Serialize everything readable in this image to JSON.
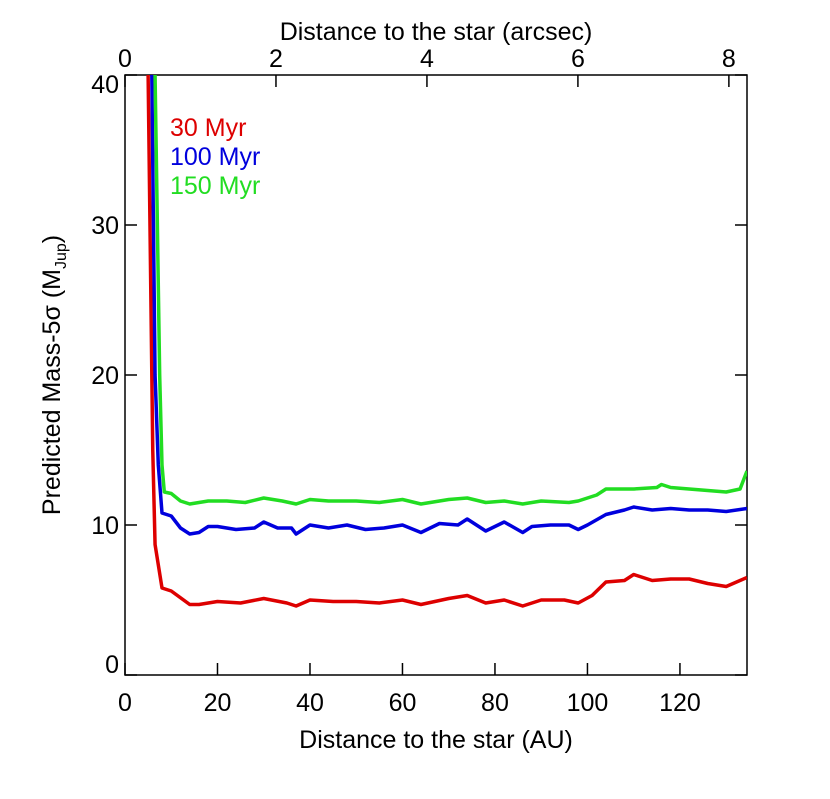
{
  "chart_data": {
    "type": "line",
    "xlabel": "Distance to the star (AU)",
    "x2label": "Distance to the star (arcsec)",
    "ylabel": "Predicted Mass-5σ (M",
    "ylabel_sub": "Jup",
    "ylabel_end": ")",
    "xlim": [
      0,
      134.5
    ],
    "xticks": [
      0,
      20,
      40,
      60,
      80,
      100,
      120
    ],
    "x2lim": [
      0,
      8.24
    ],
    "x2ticks": [
      0,
      2,
      4,
      6,
      8
    ],
    "ylim": [
      0,
      40
    ],
    "yticks": [
      0,
      10,
      20,
      30,
      40
    ],
    "legend": "top-left",
    "series": [
      {
        "name": "30 Myr",
        "color": "#dd0000",
        "x": [
          5,
          6,
          6.5,
          8,
          10,
          14,
          16,
          20,
          25,
          30,
          35,
          37,
          40,
          45,
          50,
          55,
          60,
          64,
          70,
          74,
          78,
          82,
          86,
          90,
          95,
          98,
          101,
          104,
          108,
          110,
          114,
          118,
          122,
          126,
          130,
          134.5
        ],
        "values": [
          40,
          15,
          8.7,
          5.8,
          5.6,
          4.7,
          4.7,
          4.9,
          4.8,
          5.1,
          4.8,
          4.6,
          5.0,
          4.9,
          4.9,
          4.8,
          5.0,
          4.7,
          5.1,
          5.3,
          4.8,
          5.0,
          4.6,
          5.0,
          5.0,
          4.8,
          5.3,
          6.2,
          6.3,
          6.7,
          6.3,
          6.4,
          6.4,
          6.1,
          5.9,
          6.5
        ]
      },
      {
        "name": "100 Myr",
        "color": "#0000dd",
        "x": [
          5.8,
          6.5,
          7.2,
          8,
          10,
          12,
          14,
          16,
          18,
          20,
          24,
          28,
          30,
          33,
          36,
          37,
          40,
          44,
          48,
          52,
          56,
          60,
          64,
          68,
          72,
          74,
          76,
          78,
          80,
          82,
          86,
          88,
          92,
          96,
          98,
          100,
          104,
          108,
          110,
          114,
          118,
          122,
          126,
          130,
          134.5
        ],
        "values": [
          40,
          20,
          14,
          10.8,
          10.6,
          9.8,
          9.4,
          9.5,
          9.9,
          9.9,
          9.7,
          9.8,
          10.2,
          9.8,
          9.8,
          9.4,
          10.0,
          9.8,
          10.0,
          9.7,
          9.8,
          10.0,
          9.5,
          10.1,
          10.0,
          10.4,
          10.0,
          9.6,
          9.9,
          10.2,
          9.5,
          9.9,
          10.0,
          10.0,
          9.7,
          10.0,
          10.7,
          11.0,
          11.2,
          11.0,
          11.1,
          11.0,
          11.0,
          10.9,
          11.1
        ]
      },
      {
        "name": "150 Myr",
        "color": "#22dd22",
        "x": [
          6.5,
          7,
          7.5,
          8,
          8.5,
          10,
          12,
          14,
          18,
          22,
          26,
          30,
          34,
          37,
          40,
          44,
          50,
          55,
          60,
          64,
          70,
          74,
          78,
          82,
          86,
          90,
          96,
          98,
          102,
          104,
          110,
          115,
          116,
          118,
          122,
          126,
          130,
          133,
          134.5
        ],
        "values": [
          40,
          30,
          20,
          14,
          12.2,
          12.1,
          11.6,
          11.4,
          11.6,
          11.6,
          11.5,
          11.8,
          11.6,
          11.4,
          11.7,
          11.6,
          11.6,
          11.5,
          11.7,
          11.4,
          11.7,
          11.8,
          11.5,
          11.6,
          11.4,
          11.6,
          11.5,
          11.6,
          12.0,
          12.4,
          12.4,
          12.5,
          12.7,
          12.5,
          12.4,
          12.3,
          12.2,
          12.4,
          13.6
        ]
      }
    ]
  }
}
